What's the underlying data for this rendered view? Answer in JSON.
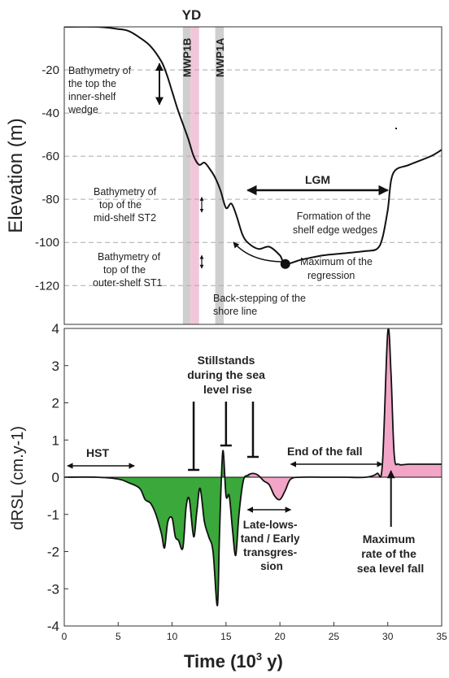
{
  "chart_data": [
    {
      "type": "line",
      "panel": "top",
      "ylabel": "Elevation (m)",
      "ylim": [
        -138,
        0
      ],
      "yticks": [
        -20,
        -40,
        -60,
        -80,
        -100,
        -120
      ],
      "grid": "dashed horizontal",
      "title_top": "YD",
      "bands": [
        {
          "label": "MWP1B",
          "x": [
            11.0,
            11.7
          ],
          "color": "#cfcfcf"
        },
        {
          "label": "",
          "x": [
            11.7,
            12.5
          ],
          "color": "#f2c6da"
        },
        {
          "label": "MWP1A",
          "x": [
            14.0,
            14.8
          ],
          "color": "#cfcfcf"
        }
      ],
      "series": [
        {
          "x": [
            0,
            3,
            5,
            6,
            7,
            8,
            9,
            9.5,
            10,
            10.5,
            11,
            11.5,
            12,
            12.5,
            13,
            13.5,
            14,
            14.5,
            15,
            15.5,
            16,
            16.5,
            17,
            18,
            19,
            20,
            20.5,
            22,
            24,
            26,
            28,
            29,
            29.5,
            30,
            30.5,
            32,
            34,
            35
          ],
          "y": [
            0,
            0,
            -1,
            -2,
            -5,
            -9,
            -16,
            -22,
            -30,
            -38,
            -45,
            -52,
            -60,
            -64,
            -63,
            -66,
            -70,
            -76,
            -84,
            -82,
            -88,
            -96,
            -100,
            -103,
            -102,
            -106,
            -110,
            -108,
            -106,
            -105,
            -104,
            -103,
            -98,
            -85,
            -68,
            -64,
            -60,
            -57
          ]
        }
      ],
      "annotations": [
        {
          "text": "Bathymetry of\nthe top the\ninner-shelf\nwedge",
          "range_y": [
            -17,
            -36
          ]
        },
        {
          "text": "Bathymetry of\ntop of the\nmid-shelf ST2",
          "range_y": [
            -79,
            -86
          ]
        },
        {
          "text": "Bathymetry of\ntop of the\nouter-shelf ST1",
          "range_y": [
            -106,
            -112
          ]
        },
        {
          "text": "LGM",
          "range_x": [
            17,
            30
          ]
        },
        {
          "text": "Formation of the\nshelf edge wedges"
        },
        {
          "text": "Maximum of the\nregression",
          "point": [
            20.5,
            -110
          ]
        },
        {
          "text": "Back-stepping of the\nshore line"
        }
      ]
    },
    {
      "type": "area",
      "panel": "bottom",
      "xlabel": "Time (10³ y)",
      "ylabel": "dRSL (cm.y-1)",
      "xlim": [
        0,
        35
      ],
      "ylim": [
        -4,
        4
      ],
      "xticks": [
        0,
        5,
        10,
        15,
        20,
        25,
        30,
        35
      ],
      "yticks": [
        4,
        3,
        2,
        1,
        0,
        -1,
        -2,
        -3,
        -4
      ],
      "fill_colors": {
        "negative": "#3aa83a",
        "positive": "#f2a5c7"
      },
      "series": [
        {
          "x": [
            0,
            3,
            5,
            6,
            7,
            7.5,
            8,
            8.5,
            9,
            9.3,
            9.6,
            10,
            10.3,
            10.6,
            11,
            11.3,
            11.6,
            12,
            12.3,
            12.6,
            13,
            13.4,
            13.8,
            14.2,
            14.4,
            14.7,
            15,
            15.3,
            15.6,
            15.9,
            16.2,
            16.6,
            17,
            17.5,
            18,
            18.5,
            19,
            19.5,
            20,
            20.5,
            21,
            22,
            24,
            26,
            28,
            29,
            29.5,
            30,
            30.3,
            30.6,
            31,
            32,
            34,
            35
          ],
          "y": [
            0,
            0,
            -0.05,
            -0.15,
            -0.3,
            -0.6,
            -0.7,
            -1.0,
            -1.5,
            -1.9,
            -1.2,
            -1.1,
            -1.6,
            -1.7,
            -1.9,
            -0.8,
            -0.6,
            -1.6,
            -0.9,
            -0.3,
            -1.2,
            -1.6,
            -2.0,
            -3.45,
            -1.5,
            0.7,
            -0.5,
            -0.5,
            -1.4,
            -2.1,
            -1.0,
            -0.1,
            0.05,
            0.1,
            0.05,
            -0.1,
            -0.2,
            -0.5,
            -0.6,
            -0.35,
            -0.05,
            0.0,
            0.0,
            0.0,
            0.0,
            0.1,
            0.35,
            3.9,
            2.8,
            0.6,
            0.35,
            0.35,
            0.35,
            0.35
          ]
        }
      ],
      "annotations": [
        {
          "text": "HST",
          "range_x": [
            0.3,
            6.5
          ]
        },
        {
          "text": "Stillstands\nduring the sea\nlevel rise",
          "markers_x": [
            12,
            15,
            17.5
          ]
        },
        {
          "text": "End of the fall",
          "range_x": [
            21,
            29.5
          ]
        },
        {
          "text": "Late-lows-\ntand / Early\ntransgres-\nsion",
          "range_x": [
            17,
            21
          ]
        },
        {
          "text": "Maximum\nrate of the\nsea level fall",
          "point": [
            30.3,
            0.3
          ]
        }
      ]
    }
  ]
}
